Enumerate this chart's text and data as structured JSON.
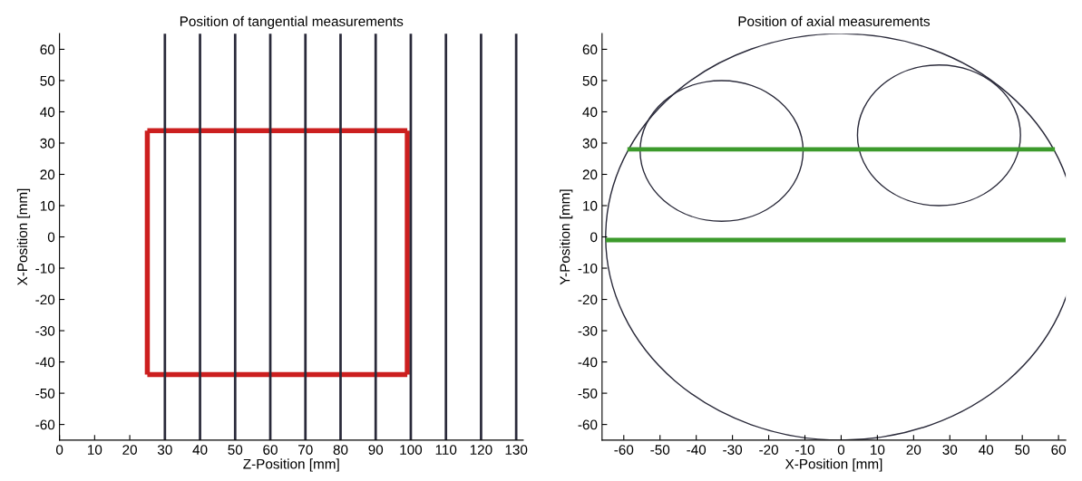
{
  "chart_data": [
    {
      "type": "line",
      "title": "Position of tangential measurements",
      "xlabel": "Z-Position [mm]",
      "ylabel": "X-Position [mm]",
      "xlim": [
        0,
        132
      ],
      "ylim": [
        -65,
        65
      ],
      "xticks": [
        0,
        10,
        20,
        30,
        40,
        50,
        60,
        70,
        80,
        90,
        100,
        110,
        120,
        130
      ],
      "yticks": [
        -60,
        -50,
        -40,
        -30,
        -20,
        -10,
        0,
        10,
        20,
        30,
        40,
        50,
        60
      ],
      "marker": "none",
      "line_style": "solid",
      "ref_lines": [
        {
          "axis": "x",
          "value": 30,
          "color": "#2a2a3a"
        },
        {
          "axis": "x",
          "value": 40,
          "color": "#2a2a3a"
        },
        {
          "axis": "x",
          "value": 50,
          "color": "#2a2a3a"
        },
        {
          "axis": "x",
          "value": 60,
          "color": "#2a2a3a"
        },
        {
          "axis": "x",
          "value": 70,
          "color": "#2a2a3a"
        },
        {
          "axis": "x",
          "value": 80,
          "color": "#2a2a3a"
        },
        {
          "axis": "x",
          "value": 90,
          "color": "#2a2a3a"
        },
        {
          "axis": "x",
          "value": 100,
          "color": "#2a2a3a"
        },
        {
          "axis": "x",
          "value": 110,
          "color": "#2a2a3a"
        },
        {
          "axis": "x",
          "value": 120,
          "color": "#2a2a3a"
        },
        {
          "axis": "x",
          "value": 130,
          "color": "#2a2a3a"
        }
      ],
      "series": [
        {
          "color": "#cc1f1f",
          "x": [
            25,
            99
          ],
          "values": [
            34,
            34
          ]
        },
        {
          "color": "#cc1f1f",
          "x": [
            25,
            99
          ],
          "values": [
            -44,
            -44
          ]
        },
        {
          "color": "#cc1f1f",
          "x": [
            25,
            25
          ],
          "values": [
            -44,
            34
          ]
        },
        {
          "color": "#cc1f1f",
          "x": [
            99,
            99
          ],
          "values": [
            -44,
            34
          ]
        }
      ]
    },
    {
      "type": "line",
      "title": "Position of axial measurements",
      "xlabel": "X-Position [mm]",
      "ylabel": "Y-Position [mm]",
      "xlim": [
        -66,
        62
      ],
      "ylim": [
        -65,
        65
      ],
      "xticks": [
        -60,
        -50,
        -40,
        -30,
        -20,
        -10,
        0,
        10,
        20,
        30,
        40,
        50,
        60
      ],
      "yticks": [
        -60,
        -50,
        -40,
        -30,
        -20,
        -10,
        0,
        10,
        20,
        30,
        40,
        50,
        60
      ],
      "marker": "none",
      "line_style": "solid",
      "series": [
        {
          "color": "#3c9a2c",
          "x": [
            -59,
            59
          ],
          "values": [
            28,
            28
          ]
        },
        {
          "color": "#3c9a2c",
          "x": [
            -65,
            62
          ],
          "values": [
            -1,
            -1
          ]
        }
      ]
    }
  ]
}
